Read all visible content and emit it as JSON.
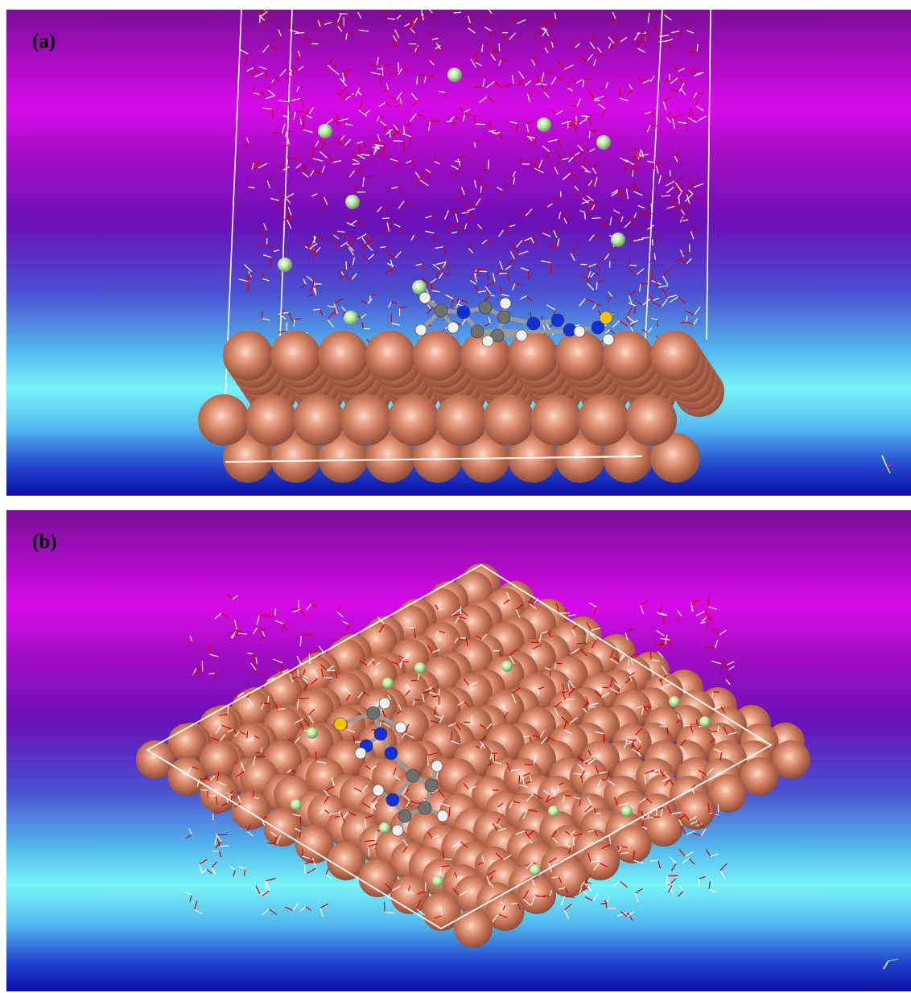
{
  "panels": [
    {
      "label": "(a)",
      "view": "side"
    },
    {
      "label": "(b)",
      "view": "top"
    }
  ],
  "colors": {
    "metal_atom": "#cd7a5c",
    "metal_highlight": "#fbe1d3",
    "water_oxygen_bond": "#d40000",
    "water_hydrogen_bond": "#ffffff",
    "chloride_ion": "#b9eba3",
    "carbon": "#707070",
    "nitrogen": "#1230d8",
    "hydrogen": "#f0f0f0",
    "sulfur": "#f4c400",
    "cell_boundary": "#ffffff"
  }
}
